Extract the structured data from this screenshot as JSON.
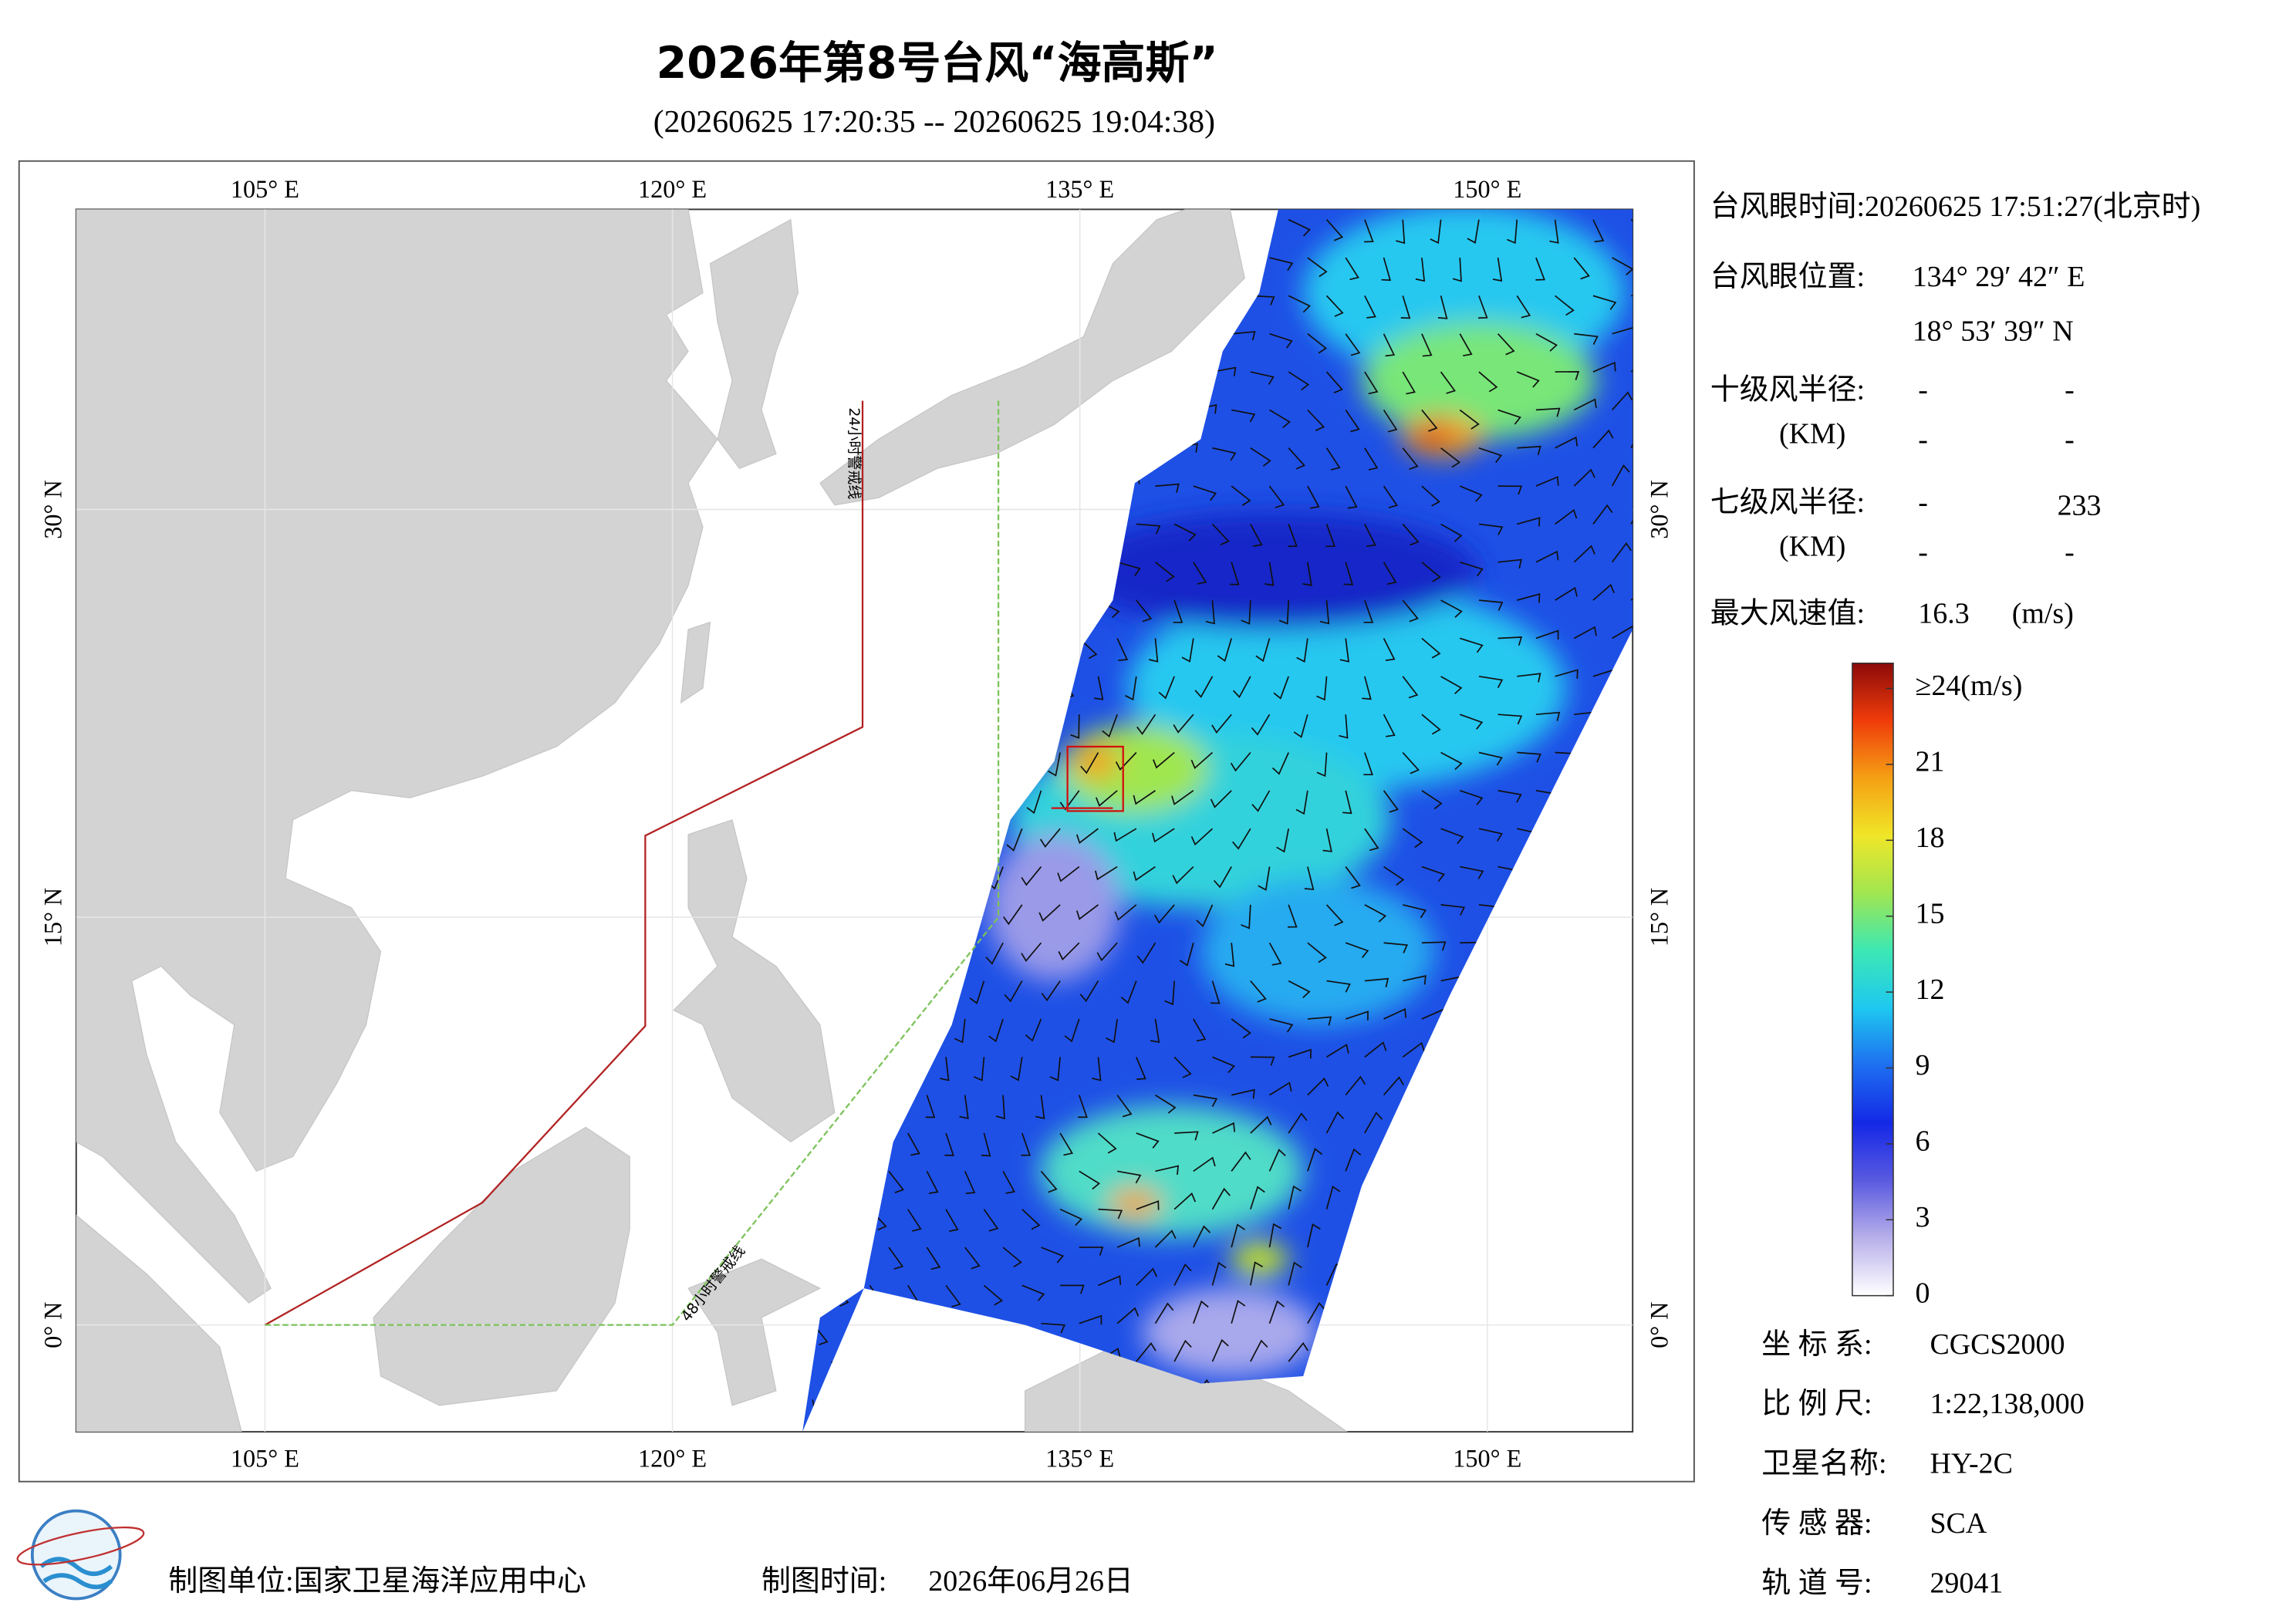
{
  "header": {
    "title": "2026年第8号台风“海高斯”",
    "subtitle": "(20260625 17:20:35 -- 20260625 19:04:38)"
  },
  "map": {
    "lonlim": [
      98.05,
      155.35
    ],
    "latlim": [
      -3.93,
      41.04
    ],
    "lon_ticks": [
      {
        "value": 105,
        "label": "105° E"
      },
      {
        "value": 120,
        "label": "120° E"
      },
      {
        "value": 135,
        "label": "135° E"
      },
      {
        "value": 150,
        "label": "150° E"
      }
    ],
    "lat_ticks": [
      {
        "value": 0,
        "label": "0° N"
      },
      {
        "value": 15,
        "label": "15° N"
      },
      {
        "value": 30,
        "label": "30° N"
      }
    ],
    "grid": true,
    "warning_lines": [
      {
        "label": "24小时警戒线",
        "color": "#b22222",
        "points": [
          [
            105,
            0
          ],
          [
            113,
            4.5
          ],
          [
            119,
            11
          ],
          [
            119,
            18
          ],
          [
            127,
            22
          ],
          [
            127,
            34
          ]
        ]
      },
      {
        "label": "48小时警戒线",
        "color": "#7cc35a",
        "points": [
          [
            105,
            0
          ],
          [
            120,
            0
          ],
          [
            132,
            15
          ],
          [
            132,
            34
          ]
        ]
      }
    ]
  },
  "info": {
    "eye_time": "台风眼时间:20260625 17:51:27(北京时)",
    "eye_position": {
      "label": "台风眼位置:",
      "lon": "134° 29′ 42″ E",
      "lat": "18° 53′ 39″ N"
    },
    "force10_radius": {
      "label": "十级风半径:",
      "unit": "(KM)",
      "values": [
        "-",
        "-",
        "-",
        "-"
      ]
    },
    "force7_radius": {
      "label": "七级风半径:",
      "unit": "(KM)",
      "values": [
        "-",
        233,
        "-",
        "-"
      ]
    },
    "max_wind": {
      "label": "最大风速值:",
      "value": 16.3,
      "unit": "(m/s)"
    }
  },
  "colorbar": {
    "lim": [
      0,
      25
    ],
    "ticks": [
      0,
      3,
      6,
      9,
      12,
      15,
      18,
      21,
      {
        "value": 24,
        "label": "≥24(m/s)"
      }
    ],
    "colors": [
      "#ffffff",
      "#b8b0ea",
      "#5a5ae0",
      "#1428e6",
      "#1e6ef0",
      "#1ec8f0",
      "#3ce8b4",
      "#a0e650",
      "#f0e628",
      "#f5a014",
      "#f03c0a",
      "#8c0a0a"
    ]
  },
  "meta": [
    {
      "label": "坐 标 系:",
      "value": "CGCS2000"
    },
    {
      "label": "比 例 尺:",
      "value": "1:22,138,000"
    },
    {
      "label": "卫星名称:",
      "value": "HY-2C"
    },
    {
      "label": "传 感 器:",
      "value": "SCA"
    },
    {
      "label": "轨 道 号:",
      "value": "29041"
    }
  ],
  "footer": {
    "unit": "制图单位:国家卫星海洋应用中心",
    "time_label": "制图时间:",
    "time": "2026年06月26日"
  }
}
